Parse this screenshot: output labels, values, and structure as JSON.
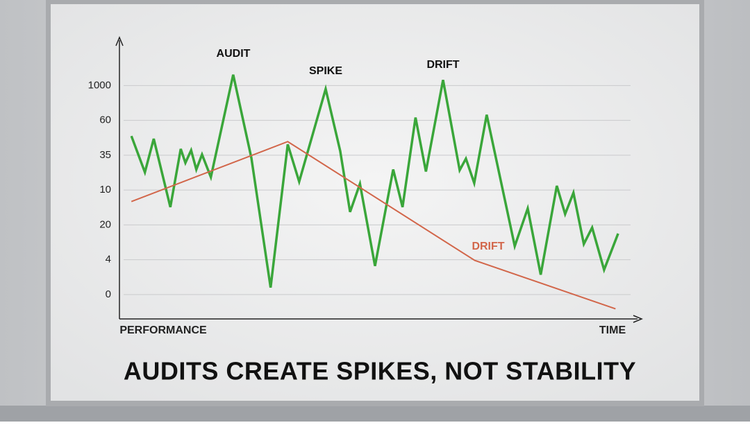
{
  "chart_data": {
    "type": "line",
    "title": "AUDITS CREATE SPIKES, NOT STABILITY",
    "x_label": "TIME",
    "y_label": "PERFORMANCE",
    "y_levels": [
      "0",
      "4",
      "20",
      "10",
      "35",
      "60",
      "1000"
    ],
    "ylim": [
      -0.7,
      7.3
    ],
    "xlim": [
      0,
      100
    ],
    "grid": true,
    "annotations": [
      "AUDIT",
      "SPIKE",
      "DRIFT",
      "DRIFT"
    ],
    "series": [
      {
        "color": "#3aa63a",
        "x": [
          2.3,
          4.9,
          6.6,
          9.8,
          11.8,
          12.7,
          13.8,
          14.8,
          15.9,
          17.6,
          21.9,
          25.4,
          29.1,
          32.4,
          34.6,
          39.7,
          42.5,
          44.4,
          46.3,
          49.2,
          52.7,
          54.5,
          57.0,
          59.0,
          62.3,
          65.5,
          66.7,
          68.3,
          70.7,
          76.1,
          78.6,
          81.1,
          84.2,
          85.8,
          87.4,
          89.4,
          91.0,
          93.3,
          96.0
        ],
        "values": [
          4.55,
          3.51,
          4.47,
          2.51,
          4.18,
          3.78,
          4.14,
          3.59,
          4.02,
          3.37,
          6.31,
          3.92,
          0.2,
          4.31,
          3.24,
          5.9,
          4.12,
          2.37,
          3.18,
          0.82,
          3.59,
          2.51,
          5.08,
          3.53,
          6.16,
          3.57,
          3.9,
          3.2,
          5.16,
          1.39,
          2.47,
          0.57,
          3.12,
          2.31,
          2.92,
          1.45,
          1.92,
          0.71,
          1.75
        ]
      },
      {
        "color": "#d2664a",
        "x": [
          2.3,
          32.4,
          68.4,
          95.5
        ],
        "values": [
          2.67,
          4.39,
          0.98,
          -0.41
        ]
      }
    ]
  }
}
